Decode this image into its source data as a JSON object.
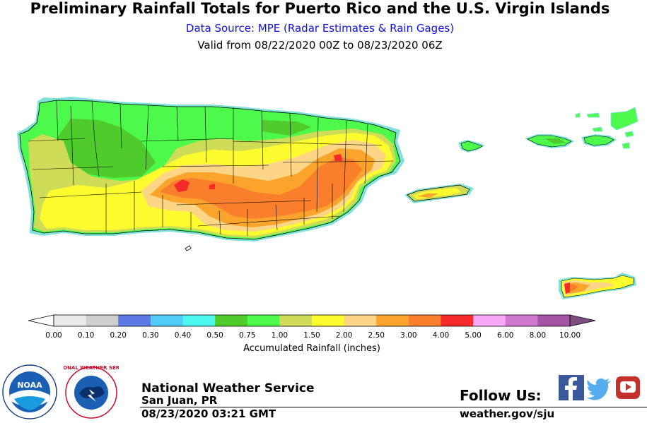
{
  "header": {
    "title": "Preliminary Rainfall Totals for Puerto Rico and the U.S. Virgin Islands",
    "source": "Data Source: MPE (Radar Estimates & Rain Gages)",
    "valid": "Valid from 08/22/2020 00Z to 08/23/2020 06Z"
  },
  "legend": {
    "caption": "Accumulated Rainfall (inches)",
    "ticks": [
      "0.00",
      "0.10",
      "0.20",
      "0.30",
      "0.40",
      "0.50",
      "0.75",
      "1.00",
      "1.50",
      "2.00",
      "2.50",
      "3.00",
      "4.00",
      "5.00",
      "6.00",
      "8.00",
      "10.00"
    ],
    "colors": [
      "#ebebeb",
      "#cfcfcf",
      "#5b78e4",
      "#52cbf8",
      "#4cf7f0",
      "#4fcb2b",
      "#4df94a",
      "#cfdc58",
      "#fbfb2e",
      "#fdd586",
      "#fba42c",
      "#f97f2d",
      "#f62a2a",
      "#f8a8f6",
      "#d078d0",
      "#a454a4"
    ],
    "over_color": "#7e4c7e",
    "under_color": "#ffffff"
  },
  "map": {
    "regions": [
      "Puerto Rico",
      "Vieques",
      "Culebra",
      "St. Thomas",
      "St. John",
      "St. Croix"
    ],
    "colors": {
      "water": "#ffffff",
      "coast": "#7fe3d8",
      "boundary": "#000000"
    }
  },
  "footer": {
    "nws_name": "National Weather Service",
    "office": "San Juan, PR",
    "timestamp": "08/23/2020 03:21 GMT",
    "follow": "Follow Us:",
    "website": "weather.gov/sju",
    "noaa_text": "NOAA",
    "nws_ring_text": "NATIONAL WEATHER SERVICE",
    "social": [
      {
        "name": "facebook",
        "color": "#3b5998"
      },
      {
        "name": "twitter",
        "color": "#55acee"
      },
      {
        "name": "youtube",
        "color": "#c4302b"
      }
    ]
  }
}
